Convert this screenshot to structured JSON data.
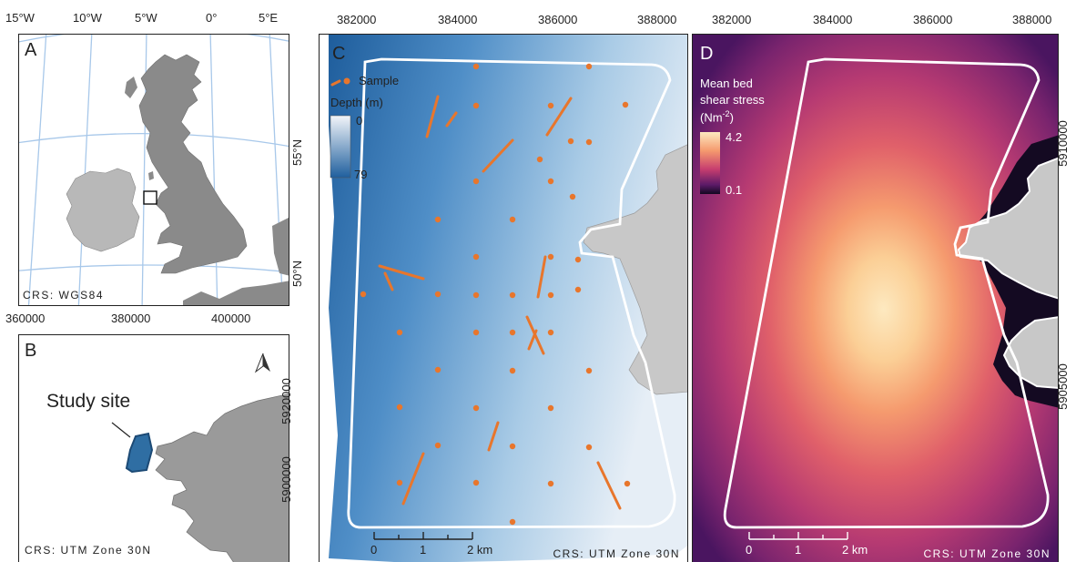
{
  "panelA": {
    "label": "A",
    "lon_ticks": [
      "15°W",
      "10°W",
      "5°W",
      "0°",
      "5°E"
    ],
    "lat_ticks": [
      "55°N",
      "50°N"
    ],
    "crs": "CRS: WGS84"
  },
  "panelB": {
    "label": "B",
    "x_ticks": [
      "360000",
      "380000",
      "400000"
    ],
    "y_ticks": [
      "5920000",
      "5900000"
    ],
    "study_label": "Study site",
    "crs": "CRS: UTM Zone 30N"
  },
  "panelC": {
    "label": "C",
    "x_ticks": [
      "382000",
      "384000",
      "386000",
      "388000"
    ],
    "legend_sample": "Sample",
    "depth_title": "Depth (m)",
    "depth_min": "0",
    "depth_max": "79",
    "scale_labels": [
      "0",
      "1",
      "2 km"
    ],
    "crs": "CRS: UTM Zone 30N"
  },
  "panelD": {
    "label": "D",
    "x_ticks": [
      "382000",
      "384000",
      "386000",
      "388000"
    ],
    "y_ticks": [
      "5910000",
      "5905000"
    ],
    "legend_title_1": "Mean bed",
    "legend_title_2": "shear stress",
    "legend_units": "(Nm",
    "legend_units_sup": "-2",
    "legend_units_close": ")",
    "stress_max": "4.2",
    "stress_min": "0.1",
    "scale_labels": [
      "0",
      "1",
      "2 km"
    ],
    "crs": "CRS: UTM Zone 30N"
  },
  "colors": {
    "sample": "#e8762c",
    "land_dark": "#8a8a8a",
    "land_light": "#b8b8b8",
    "site_fill": "#2f6ea3",
    "depth_shallow": "#eef3f8",
    "depth_deep": "#1f5f9e",
    "stress_high": "#fce3b8",
    "stress_mid": "#d64a6a",
    "stress_low": "#1a0b2e"
  }
}
